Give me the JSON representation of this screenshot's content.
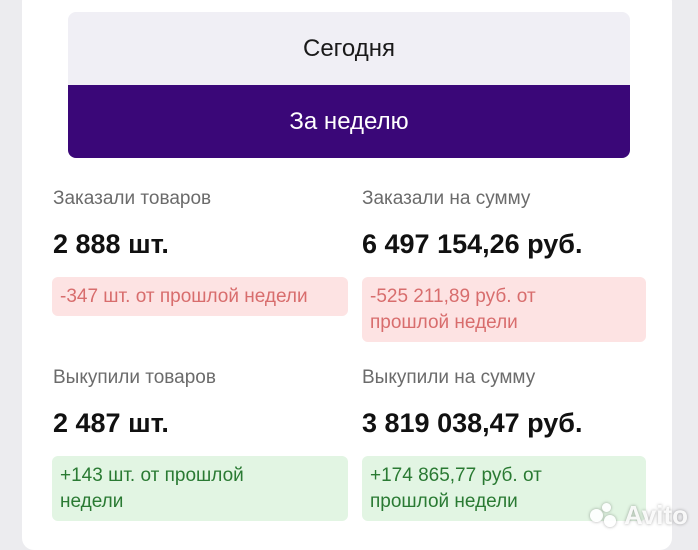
{
  "tabs": {
    "today": "Сегодня",
    "week": "За неделю"
  },
  "stats": {
    "ordered_items": {
      "label": "Заказали товаров",
      "value": "2 888 шт.",
      "delta": "-347 шт. от прошлой недели"
    },
    "ordered_sum": {
      "label": "Заказали на сумму",
      "value": "6 497 154,26 руб.",
      "delta_line1": "-525 211,89 руб. от",
      "delta_line2": "прошлой недели"
    },
    "bought_items": {
      "label": "Выкупили товаров",
      "value": "2 487 шт.",
      "delta_line1": "+143 шт. от прошлой",
      "delta_line2": "недели"
    },
    "bought_sum": {
      "label": "Выкупили на сумму",
      "value": "3 819 038,47 руб.",
      "delta_line1": "+174 865,77 руб. от",
      "delta_line2": "прошлой недели"
    }
  },
  "colors": {
    "accent": "#3a0778",
    "negative_bg": "#fde3e3",
    "negative_text": "#d86d6d",
    "positive_bg": "#e2f5e3",
    "positive_text": "#2a7a33"
  },
  "watermark": {
    "text": "Avito",
    "icon": "avito-logo-icon"
  }
}
